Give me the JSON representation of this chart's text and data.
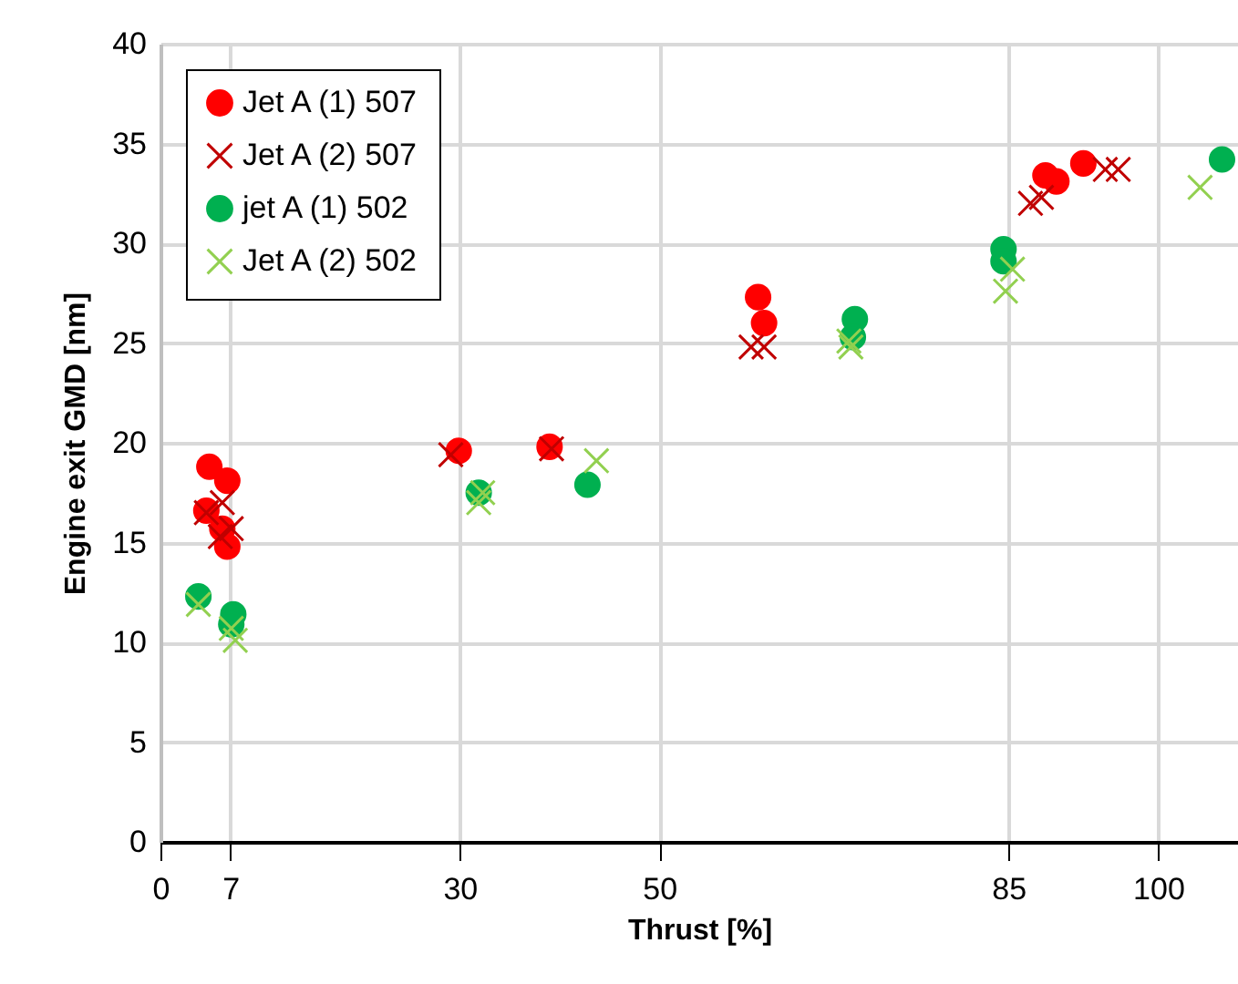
{
  "chart_data": {
    "type": "scatter",
    "xlabel": "Thrust [%]",
    "ylabel": "Engine exit GMD [nm]",
    "xlim": [
      0,
      108
    ],
    "xticks": [
      0,
      7,
      30,
      50,
      85,
      100
    ],
    "ylim": [
      0,
      40
    ],
    "yticks": [
      0,
      5,
      10,
      15,
      20,
      25,
      30,
      35,
      40
    ],
    "grid": true,
    "legend": "top left",
    "series": [
      {
        "name": "Jet A (1) 507",
        "color": "#ff0000",
        "marker": "circle",
        "x": [
          4.9,
          6.7,
          4.6,
          6.2,
          6.7,
          29.9,
          39,
          59.9,
          60.5,
          88.7,
          89.8,
          92.5
        ],
        "values": [
          18.8,
          18.1,
          16.6,
          15.7,
          14.8,
          19.6,
          19.8,
          27.3,
          26.0,
          33.4,
          33.1,
          34.0
        ]
      },
      {
        "name": "Jet A (2) 507",
        "color": "#c00000",
        "marker": "cross",
        "x": [
          4.6,
          6.2,
          7.1,
          6.0,
          29.1,
          39.2,
          59.2,
          60.5,
          87.2,
          88.3,
          94.7,
          96.0
        ],
        "values": [
          16.5,
          17.0,
          15.7,
          15.3,
          19.4,
          19.7,
          24.8,
          24.8,
          32.0,
          32.3,
          33.7,
          33.7
        ]
      },
      {
        "name": "jet A (1) 502",
        "color": "#00b050",
        "marker": "circle",
        "x": [
          3.8,
          7.3,
          7.1,
          31.9,
          42.8,
          69.6,
          69.4,
          84.5,
          84.5,
          106.4
        ],
        "values": [
          12.3,
          11.4,
          10.9,
          17.5,
          17.9,
          26.2,
          25.3,
          29.7,
          29.1,
          34.2
        ]
      },
      {
        "name": "Jet A (2) 502",
        "color": "#92d050",
        "marker": "cross",
        "x": [
          3.8,
          7.1,
          7.5,
          31.9,
          32.3,
          43.7,
          69.2,
          69.0,
          85.4,
          84.7,
          104.2
        ],
        "values": [
          11.9,
          10.7,
          10.1,
          17.0,
          17.5,
          19.1,
          24.8,
          25.1,
          28.7,
          27.6,
          32.8
        ]
      }
    ]
  }
}
